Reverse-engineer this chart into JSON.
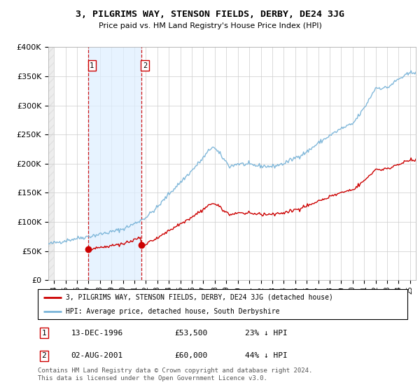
{
  "title": "3, PILGRIMS WAY, STENSON FIELDS, DERBY, DE24 3JG",
  "subtitle": "Price paid vs. HM Land Registry's House Price Index (HPI)",
  "legend_line1": "3, PILGRIMS WAY, STENSON FIELDS, DERBY, DE24 3JG (detached house)",
  "legend_line2": "HPI: Average price, detached house, South Derbyshire",
  "purchase1_date": "13-DEC-1996",
  "purchase1_price": 53500,
  "purchase1_label": "23% ↓ HPI",
  "purchase2_date": "02-AUG-2001",
  "purchase2_price": 60000,
  "purchase2_label": "44% ↓ HPI",
  "footnote": "Contains HM Land Registry data © Crown copyright and database right 2024.\nThis data is licensed under the Open Government Licence v3.0.",
  "ylim": [
    0,
    400000
  ],
  "xlim_start": 1993.5,
  "xlim_end": 2025.5,
  "hpi_color": "#7ab4d8",
  "price_color": "#cc0000",
  "t1": 1996.958,
  "t2": 2001.583,
  "hatch_end": 1994.0
}
